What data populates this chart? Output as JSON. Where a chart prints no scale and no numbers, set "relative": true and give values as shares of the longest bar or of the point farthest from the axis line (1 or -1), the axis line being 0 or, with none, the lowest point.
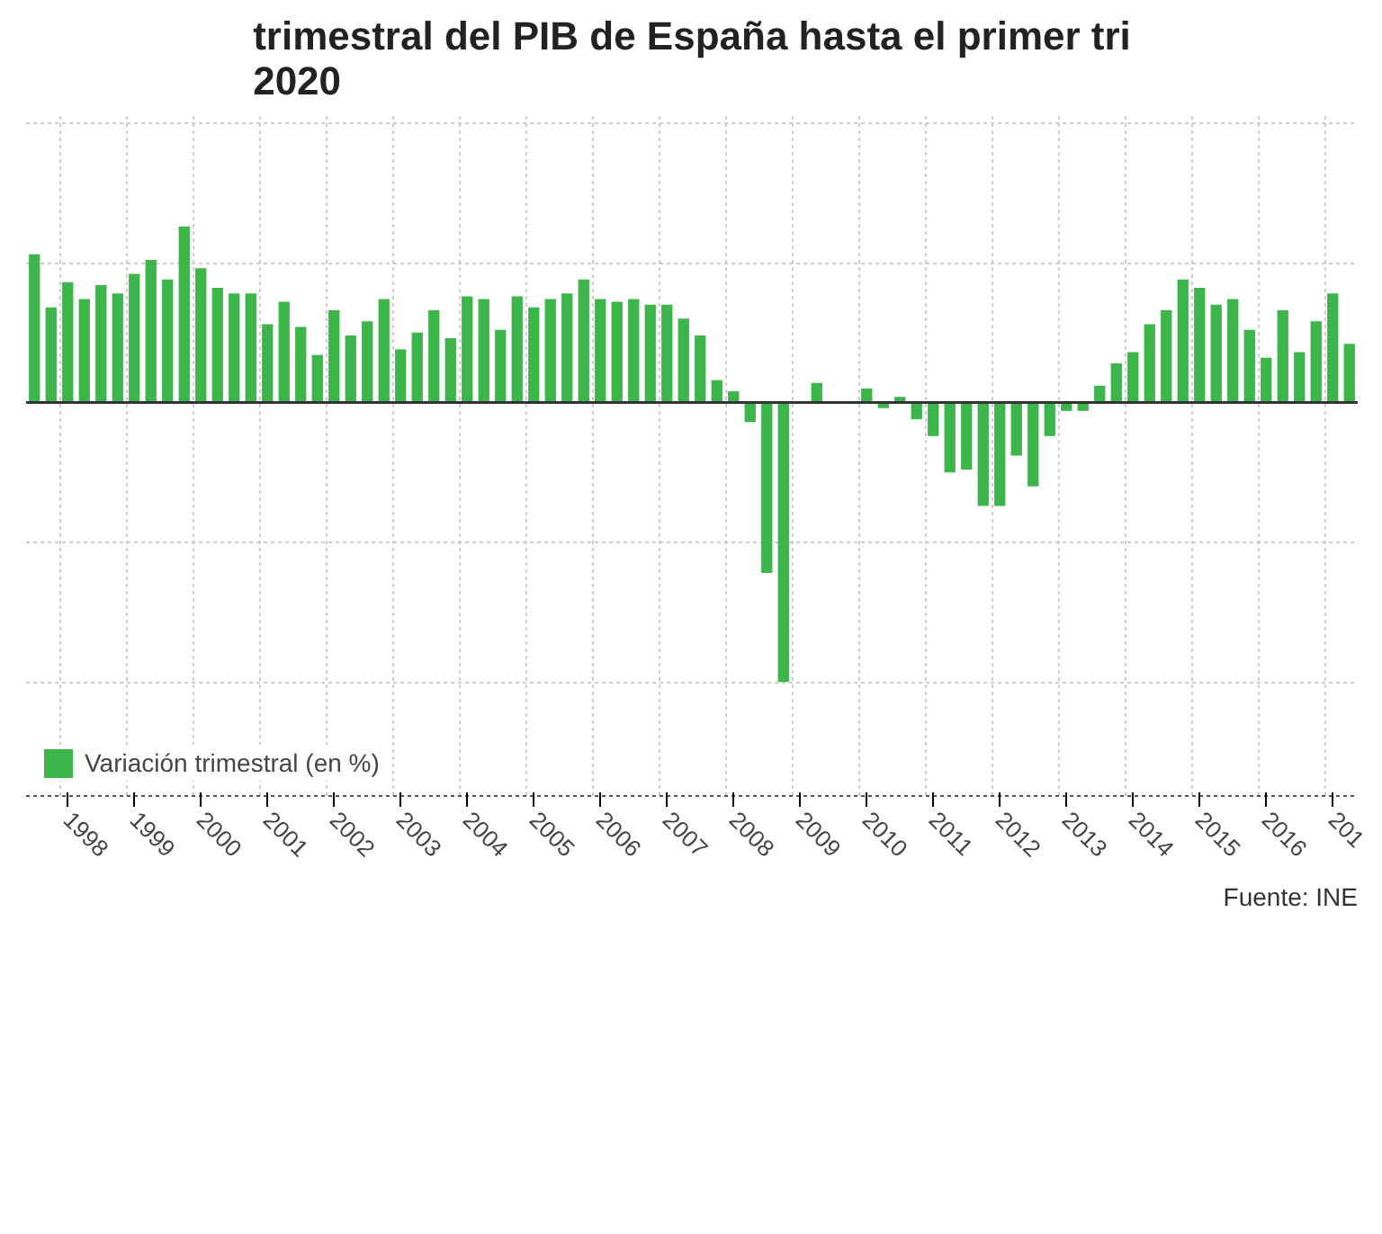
{
  "chart_data": {
    "type": "bar",
    "title": "trimestral del PIB de España hasta el primer tri\n2020",
    "relative": true,
    "grid": true,
    "legend": "bottom",
    "categories": [
      null,
      null,
      "1998",
      null,
      null,
      null,
      "1999",
      null,
      null,
      null,
      "2000",
      null,
      null,
      null,
      "2001",
      null,
      null,
      null,
      "2002",
      null,
      null,
      null,
      "2003",
      null,
      null,
      null,
      "2004",
      null,
      null,
      null,
      "2005",
      null,
      null,
      null,
      "2006",
      null,
      null,
      null,
      "2007",
      null,
      null,
      null,
      "2008",
      null,
      null,
      null,
      "2009",
      null,
      null,
      null,
      "2010",
      null,
      null,
      null,
      "2011",
      null,
      null,
      null,
      "2012",
      null,
      null,
      null,
      "2013",
      null,
      null,
      null,
      "2014",
      null,
      null,
      null,
      "2015",
      null,
      null,
      null,
      "2016",
      null,
      null,
      null,
      "201",
      null
    ],
    "series": [
      {
        "name": "Variación trimestral (en %)",
        "color": "#3cb64b",
        "values": [
          0.53,
          0.34,
          0.43,
          0.37,
          0.42,
          0.39,
          0.46,
          0.51,
          0.44,
          0.63,
          0.48,
          0.41,
          0.39,
          0.39,
          0.28,
          0.36,
          0.27,
          0.17,
          0.33,
          0.24,
          0.29,
          0.37,
          0.19,
          0.25,
          0.33,
          0.23,
          0.38,
          0.37,
          0.26,
          0.38,
          0.34,
          0.37,
          0.39,
          0.44,
          0.37,
          0.36,
          0.37,
          0.35,
          0.35,
          0.3,
          0.24,
          0.08,
          0.04,
          -0.07,
          -0.61,
          -1,
          0,
          0.07,
          0,
          0,
          0.05,
          -0.02,
          0.02,
          -0.06,
          -0.12,
          -0.25,
          -0.24,
          -0.37,
          -0.37,
          -0.19,
          -0.3,
          -0.12,
          -0.03,
          -0.03,
          0.06,
          0.14,
          0.18,
          0.28,
          0.33,
          0.44,
          0.41,
          0.35,
          0.37,
          0.26,
          0.16,
          0.33,
          0.18,
          0.29,
          0.39,
          0.21
        ]
      }
    ],
    "annotations": [
      "Fuente: INE"
    ]
  }
}
